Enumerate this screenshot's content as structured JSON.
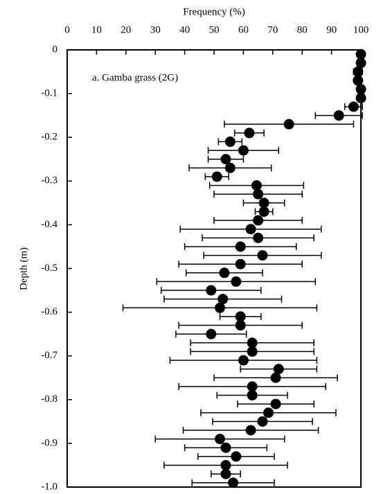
{
  "chart_data": {
    "type": "scatter",
    "title": "Frequency (%)",
    "y_label": "Depth (m)",
    "annotation": "a. Gamba grass (2G)",
    "color": "#000000",
    "xlim": [
      0,
      100
    ],
    "xticks": [
      0,
      10,
      20,
      30,
      40,
      50,
      60,
      70,
      80,
      90,
      100
    ],
    "ylim": [
      -1,
      0
    ],
    "yticks": [
      0,
      -0.1,
      -0.2,
      -0.3,
      -0.4,
      -0.5,
      -0.6,
      -0.7,
      -0.8,
      -0.9,
      {
        "value": -1,
        "label": "-1.0"
      }
    ],
    "y": [
      -0.01,
      -0.03,
      -0.05,
      -0.07,
      -0.09,
      -0.11,
      -0.13,
      -0.15,
      -0.17,
      -0.19,
      -0.21,
      -0.23,
      -0.25,
      -0.27,
      -0.29,
      -0.31,
      -0.33,
      -0.35,
      -0.37,
      -0.39,
      -0.41,
      -0.43,
      -0.45,
      -0.47,
      -0.49,
      -0.51,
      -0.53,
      -0.55,
      -0.57,
      -0.59,
      -0.61,
      -0.63,
      -0.65,
      -0.67,
      -0.69,
      -0.71,
      -0.73,
      -0.75,
      -0.77,
      -0.79,
      -0.81,
      -0.83,
      -0.85,
      -0.87,
      -0.89,
      -0.91,
      -0.93,
      -0.95,
      -0.97,
      -0.99
    ],
    "x": [
      100,
      100,
      99,
      99,
      100,
      100,
      97.5,
      92.5,
      75.5,
      62,
      55.5,
      60,
      54,
      55.5,
      51,
      64.5,
      65,
      67,
      67,
      65,
      62.5,
      65,
      59,
      66.5,
      59,
      53.5,
      57.5,
      49,
      53,
      52,
      59,
      59,
      49,
      63,
      63,
      60,
      72,
      71,
      63,
      63,
      71,
      68.5,
      66.5,
      62.5,
      52,
      54,
      57.5,
      54,
      54,
      56.5
    ],
    "errors": [
      0,
      0,
      1.5,
      1,
      0,
      1,
      3,
      8,
      22,
      5,
      4,
      12,
      6,
      14,
      4,
      16,
      15,
      7,
      3,
      15,
      24,
      19,
      19,
      20,
      21,
      13,
      27,
      17,
      20,
      33,
      7,
      21,
      12,
      21,
      21,
      25,
      13,
      21,
      25,
      12,
      13,
      23,
      17,
      23,
      22,
      14,
      13,
      21,
      5,
      14
    ]
  }
}
